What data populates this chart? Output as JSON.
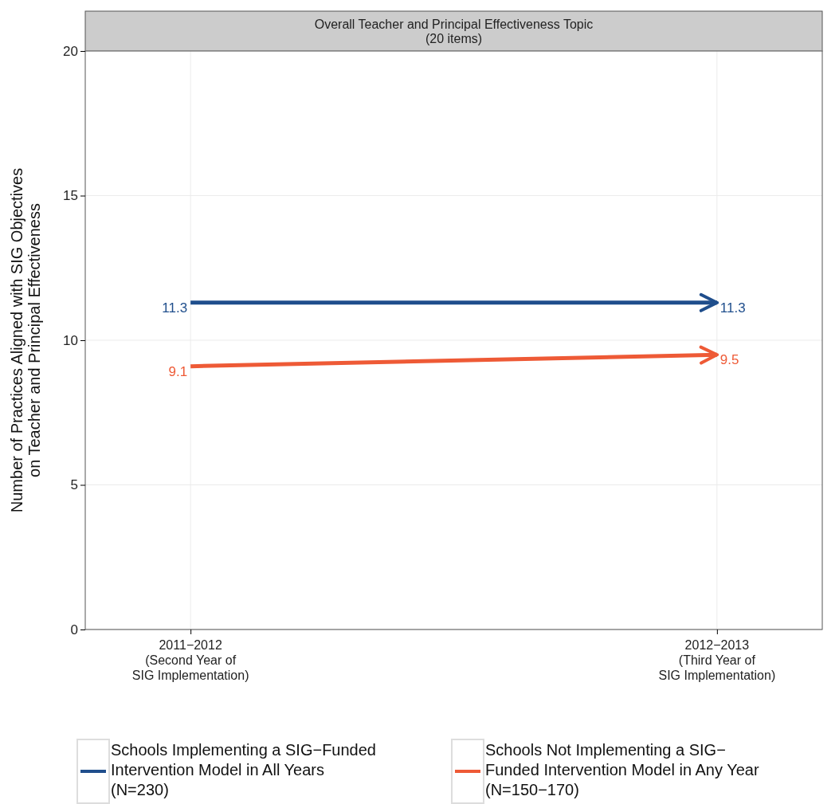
{
  "chart_data": {
    "type": "line",
    "title": "Overall Teacher and Principal Effectiveness Topic\n(20 items)",
    "ylabel": "Number of Practices Aligned with SIG Objectives\non Teacher and Principal Effectiveness",
    "categories": [
      "2011−2012\n(Second Year of\nSIG Implementation)",
      "2012−2013\n(Third Year of\nSIG Implementation)"
    ],
    "series": [
      {
        "name": "Schools Implementing a SIG−Funded\nIntervention Model in All Years\n(N=230)",
        "color": "#1f4e8c",
        "values": [
          11.3,
          11.3
        ]
      },
      {
        "name": "Schools Not Implementing a SIG−\nFunded Intervention Model in Any Year\n(N=150−170)",
        "color": "#ee5a36",
        "values": [
          9.1,
          9.5
        ]
      }
    ],
    "ylim": [
      0,
      20
    ],
    "yticks": [
      0,
      5,
      10,
      15,
      20
    ],
    "grid": true,
    "legend": "bottom",
    "data_labels": true,
    "marker": "none",
    "line_style": "solid"
  }
}
